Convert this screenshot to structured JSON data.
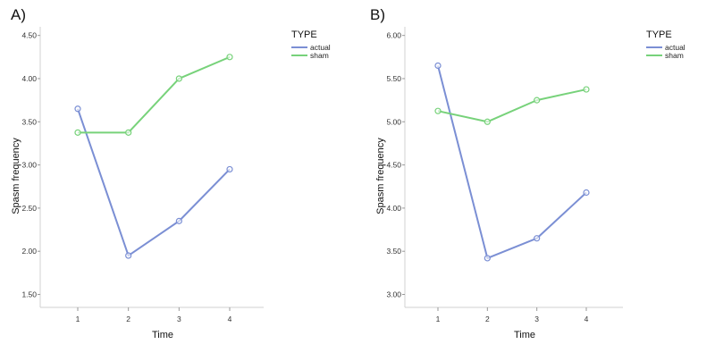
{
  "chart_data": [
    {
      "type": "line",
      "panel_label": "A)",
      "xlabel": "Time",
      "ylabel": "Spasm frequency",
      "x": [
        1,
        2,
        3,
        4
      ],
      "ylim": [
        1.35,
        4.6
      ],
      "yticks": [
        1.5,
        2.0,
        2.5,
        3.0,
        3.5,
        4.0,
        4.5
      ],
      "ytick_labels": [
        "1.50",
        "2.00",
        "2.50",
        "3.00",
        "3.50",
        "4.00",
        "4.50"
      ],
      "legend": {
        "title": "TYPE",
        "placement": "top-right-outside"
      },
      "series": [
        {
          "name": "actual",
          "color": "#7b8fd4",
          "values": [
            3.65,
            1.95,
            2.35,
            2.95
          ]
        },
        {
          "name": "sham",
          "color": "#77d27a",
          "values": [
            3.375,
            3.375,
            4.0,
            4.25
          ]
        }
      ]
    },
    {
      "type": "line",
      "panel_label": "B)",
      "xlabel": "Time",
      "ylabel": "Spasm frequency",
      "x": [
        1,
        2,
        3,
        4
      ],
      "ylim": [
        2.85,
        6.1
      ],
      "yticks": [
        3.0,
        3.5,
        4.0,
        4.5,
        5.0,
        5.5,
        6.0
      ],
      "ytick_labels": [
        "3.00",
        "3.50",
        "4.00",
        "4.50",
        "5.00",
        "5.50",
        "6.00"
      ],
      "legend": {
        "title": "TYPE",
        "placement": "top-right-outside"
      },
      "series": [
        {
          "name": "actual",
          "color": "#7b8fd4",
          "values": [
            5.65,
            3.42,
            3.65,
            4.18
          ]
        },
        {
          "name": "sham",
          "color": "#77d27a",
          "values": [
            5.125,
            5.0,
            5.25,
            5.375
          ]
        }
      ]
    }
  ]
}
